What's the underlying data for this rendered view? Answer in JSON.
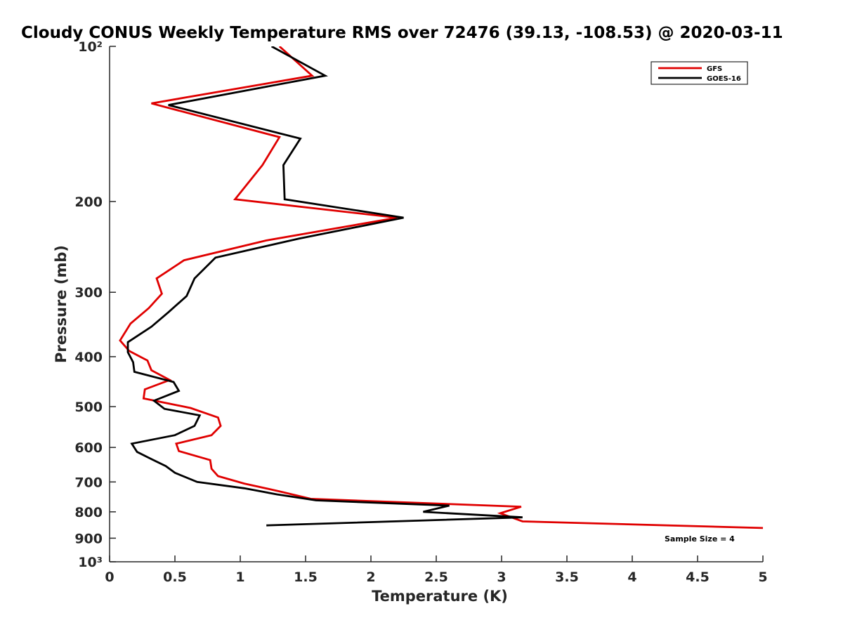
{
  "chart_data": {
    "type": "line",
    "title": "Cloudy CONUS Weekly Temperature RMS over 72476 (39.13, -108.53) @ 2020-03-11",
    "xlabel": "Temperature (K)",
    "ylabel": "Pressure (mb)",
    "xlim": [
      0,
      5
    ],
    "ylim": [
      100,
      1000
    ],
    "y_scale": "log",
    "y_reversed": true,
    "grid": false,
    "legend_position": "top-right",
    "x_ticks": [
      0,
      0.5,
      1,
      1.5,
      2,
      2.5,
      3,
      3.5,
      4,
      4.5,
      5
    ],
    "x_tick_labels": [
      "0",
      "0.5",
      "1",
      "1.5",
      "2",
      "2.5",
      "3",
      "3.5",
      "4",
      "4.5",
      "5"
    ],
    "y_ticks": [
      100,
      200,
      300,
      400,
      500,
      600,
      700,
      800,
      900,
      1000
    ],
    "y_tick_labels": [
      "10²",
      "200",
      "300",
      "400",
      "500",
      "600",
      "700",
      "800",
      "900",
      "10³"
    ],
    "annotation": "Sample Size = 4",
    "series": [
      {
        "name": "GFS",
        "color": "#e00000",
        "x": [
          1.3,
          1.55,
          0.32,
          1.3,
          1.17,
          0.96,
          2.2,
          1.2,
          0.57,
          0.36,
          0.4,
          0.3,
          0.16,
          0.08,
          0.15,
          0.29,
          0.32,
          0.46,
          0.27,
          0.26,
          0.62,
          0.83,
          0.85,
          0.78,
          0.51,
          0.53,
          0.77,
          0.78,
          0.83,
          1.03,
          1.3,
          1.54,
          3.15,
          2.99,
          3.16,
          5.0
        ],
        "y": [
          100,
          114,
          129,
          150,
          170,
          198,
          215,
          238,
          260,
          282,
          302,
          322,
          345,
          372,
          390,
          407,
          425,
          444,
          463,
          482,
          503,
          525,
          545,
          568,
          590,
          610,
          635,
          660,
          682,
          705,
          730,
          755,
          782,
          805,
          835,
          860
        ]
      },
      {
        "name": "GOES-16",
        "color": "#000000",
        "x": [
          1.24,
          1.65,
          0.45,
          1.46,
          1.33,
          1.34,
          2.25,
          1.45,
          0.81,
          0.65,
          0.59,
          0.45,
          0.32,
          0.14,
          0.14,
          0.18,
          0.19,
          0.49,
          0.53,
          0.34,
          0.42,
          0.69,
          0.65,
          0.5,
          0.17,
          0.21,
          0.32,
          0.43,
          0.5,
          0.67,
          1.03,
          1.28,
          1.58,
          2.6,
          2.4,
          3.16,
          1.2
        ],
        "y": [
          100,
          114,
          130,
          151,
          170,
          198,
          215,
          236,
          257,
          282,
          305,
          328,
          350,
          375,
          392,
          410,
          428,
          448,
          466,
          487,
          505,
          520,
          545,
          568,
          590,
          612,
          632,
          652,
          672,
          700,
          720,
          740,
          760,
          778,
          800,
          820,
          850
        ]
      }
    ]
  }
}
